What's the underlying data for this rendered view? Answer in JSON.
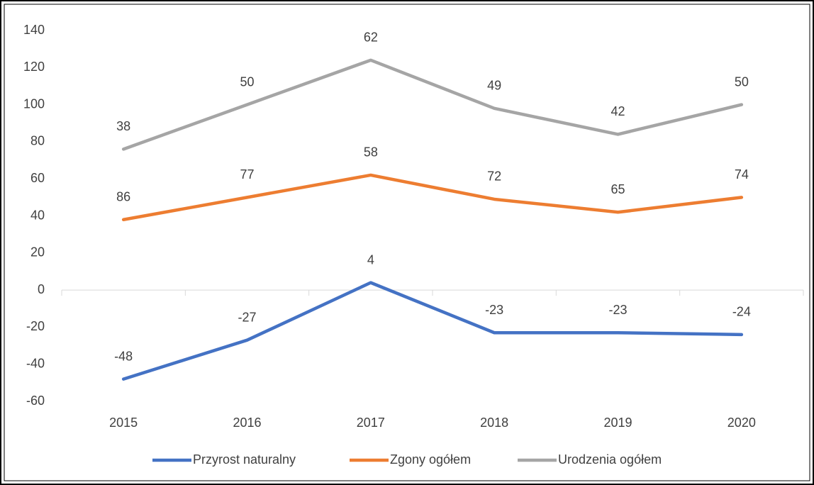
{
  "chart_data": {
    "type": "line",
    "stacked": true,
    "categories": [
      "2015",
      "2016",
      "2017",
      "2018",
      "2019",
      "2020"
    ],
    "series": [
      {
        "name": "Przyrost naturalny",
        "color": "#4472c4",
        "values": [
          -48,
          -27,
          4,
          -23,
          -23,
          -24
        ]
      },
      {
        "name": "Zgony ogółem",
        "color": "#ed7d31",
        "values": [
          86,
          77,
          58,
          72,
          65,
          74
        ]
      },
      {
        "name": "Urodzenia ogółem",
        "color": "#a5a5a5",
        "values": [
          38,
          50,
          62,
          49,
          42,
          50
        ]
      }
    ],
    "ylim": [
      -60,
      140
    ],
    "yticks": [
      -60,
      -40,
      -20,
      0,
      20,
      40,
      60,
      80,
      100,
      120,
      140
    ],
    "grid": false,
    "legend": "bottom",
    "data_labels": true
  }
}
